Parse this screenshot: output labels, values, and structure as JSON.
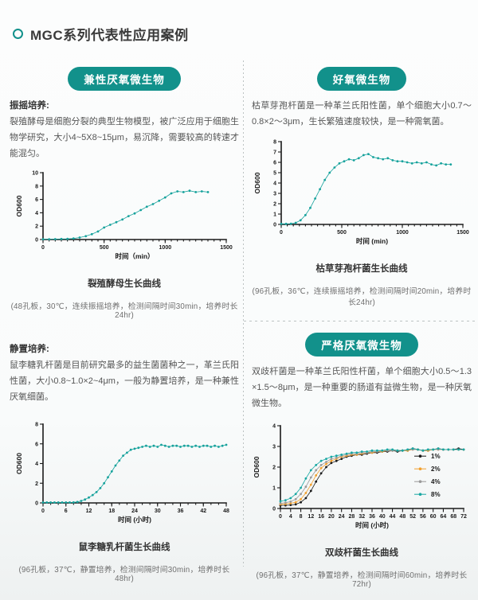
{
  "page": {
    "title": "MGC系列代表性应用案例"
  },
  "colors": {
    "accent_teal": "#12918b",
    "curve_teal": "#16a29c",
    "series_black": "#1a1a1a",
    "series_orange": "#f2a02e",
    "series_gray": "#9a9a9a",
    "series_teal": "#17a7a2"
  },
  "sections": {
    "facultative": {
      "badge": "兼性厌氧微生物",
      "method_label": "振摇培养:",
      "description": "裂殖酵母是细胞分裂的典型生物模型，被广泛应用于细胞生物学研究，大小4~5X8~15μm，易沉降，需要较高的转速才能混匀。",
      "caption": "裂殖酵母生长曲线",
      "note": "(48孔板，30℃，连续振摇培养，检测间隔时间30min，培养时长24hr)"
    },
    "aerobic": {
      "badge": "好氧微生物",
      "description": "枯草芽孢杆菌是一种革兰氏阳性菌，单个细胞大小0.7～0.8×2～3μm，生长繁殖速度较快，是一种需氧菌。",
      "caption": "枯草芽孢杆菌生长曲线",
      "note": "(96孔板，36℃，连续振摇培养，检测间隔时间20min，培养时长24hr)"
    },
    "static": {
      "method_label": "静置培养:",
      "description": "鼠李糖乳杆菌是目前研究最多的益生菌菌种之一，革兰氏阳性菌，大小0.8~1.0×2~4μm，一般为静置培养，是一种兼性厌氧细菌。",
      "caption": "鼠李糖乳杆菌生长曲线",
      "note": "(96孔板，37℃，静置培养，检测间隔时间30min，培养时长48hr)"
    },
    "anaerobic": {
      "badge": "严格厌氧微生物",
      "description": "双歧杆菌是一种革兰氏阳性杆菌，单个细胞大小0.5～1.3 ×1.5～8μm，是一种重要的肠道有益微生物，是一种厌氧微生物。",
      "caption": "双歧杆菌生长曲线",
      "note": "(96孔板，37℃，静置培养，检测间隔时间60min，培养时长72hr)"
    }
  },
  "chart_data": [
    {
      "type": "line",
      "title": "裂殖酵母生长曲线",
      "xlabel": "时间（min）",
      "ylabel": "OD600",
      "xlim": [
        0,
        1500
      ],
      "ylim": [
        0,
        10
      ],
      "xticks": [
        0,
        500,
        1000,
        1500
      ],
      "yticks": [
        0,
        2,
        4,
        6,
        8,
        10
      ],
      "x_minor": 50,
      "grid": false,
      "x": [
        0,
        50,
        100,
        150,
        200,
        250,
        300,
        350,
        400,
        450,
        500,
        550,
        600,
        650,
        700,
        750,
        800,
        850,
        900,
        950,
        1000,
        1050,
        1100,
        1150,
        1200,
        1250,
        1300,
        1350
      ],
      "series": [
        {
          "name": "OD600",
          "color": "#16a29c",
          "values": [
            0.05,
            0.05,
            0.06,
            0.08,
            0.1,
            0.15,
            0.3,
            0.5,
            0.8,
            1.2,
            1.8,
            2.2,
            2.6,
            3.0,
            3.5,
            3.9,
            4.4,
            4.9,
            5.3,
            5.8,
            6.3,
            6.9,
            7.2,
            7.1,
            7.3,
            7.1,
            7.2,
            7.1
          ]
        }
      ]
    },
    {
      "type": "line",
      "title": "枯草芽孢杆菌生长曲线",
      "xlabel": "时间 (min)",
      "ylabel": "OD600",
      "xlim": [
        0,
        1500
      ],
      "ylim": [
        0,
        8
      ],
      "xticks": [
        0,
        500,
        1000,
        1500
      ],
      "yticks": [
        0,
        1,
        2,
        3,
        4,
        5,
        6,
        7,
        8
      ],
      "x_minor": 50,
      "grid": false,
      "x": [
        0,
        40,
        80,
        120,
        160,
        200,
        240,
        280,
        320,
        360,
        400,
        440,
        480,
        520,
        560,
        600,
        640,
        680,
        720,
        760,
        800,
        840,
        880,
        920,
        960,
        1000,
        1040,
        1080,
        1120,
        1160,
        1200,
        1240,
        1280,
        1320,
        1360,
        1400
      ],
      "series": [
        {
          "name": "OD600",
          "color": "#16a29c",
          "values": [
            0.05,
            0.05,
            0.07,
            0.15,
            0.4,
            0.9,
            1.6,
            2.5,
            3.4,
            4.3,
            5.0,
            5.5,
            5.9,
            6.1,
            6.3,
            6.2,
            6.4,
            6.7,
            6.8,
            6.5,
            6.4,
            6.3,
            6.4,
            6.2,
            6.1,
            6.1,
            6.0,
            5.9,
            6.0,
            5.9,
            6.0,
            5.8,
            5.7,
            5.9,
            5.8,
            5.8
          ]
        }
      ]
    },
    {
      "type": "line",
      "title": "鼠李糖乳杆菌生长曲线",
      "xlabel": "时间 (小时)",
      "ylabel": "OD600",
      "xlim": [
        0,
        48
      ],
      "ylim": [
        0,
        8
      ],
      "xticks": [
        0,
        6,
        12,
        18,
        24,
        30,
        36,
        42,
        48
      ],
      "yticks": [
        0,
        2,
        4,
        6,
        8
      ],
      "x_minor": 2,
      "grid": false,
      "x": [
        0,
        1,
        2,
        3,
        4,
        5,
        6,
        7,
        8,
        9,
        10,
        11,
        12,
        13,
        14,
        15,
        16,
        17,
        18,
        19,
        20,
        21,
        22,
        23,
        24,
        25,
        26,
        27,
        28,
        29,
        30,
        31,
        32,
        33,
        34,
        35,
        36,
        37,
        38,
        39,
        40,
        41,
        42,
        43,
        44,
        45,
        46,
        47,
        48
      ],
      "series": [
        {
          "name": "OD600",
          "color": "#16a29c",
          "values": [
            0.05,
            0.05,
            0.05,
            0.05,
            0.05,
            0.05,
            0.05,
            0.05,
            0.06,
            0.1,
            0.2,
            0.35,
            0.55,
            0.8,
            1.1,
            1.5,
            2.0,
            2.6,
            3.2,
            3.8,
            4.3,
            4.8,
            5.1,
            5.4,
            5.5,
            5.6,
            5.7,
            5.8,
            5.7,
            5.8,
            5.7,
            5.9,
            5.8,
            5.7,
            5.8,
            5.8,
            5.7,
            5.8,
            5.8,
            5.7,
            5.8,
            5.7,
            5.8,
            5.8,
            5.7,
            5.8,
            5.7,
            5.8,
            5.9
          ]
        }
      ]
    },
    {
      "type": "line",
      "title": "双歧杆菌生长曲线",
      "xlabel": "时间 (小时)",
      "ylabel": "OD600",
      "xlim": [
        0,
        72
      ],
      "ylim": [
        0,
        4
      ],
      "xticks": [
        0,
        4,
        8,
        12,
        16,
        20,
        24,
        28,
        32,
        36,
        40,
        44,
        48,
        52,
        56,
        60,
        64,
        68,
        72
      ],
      "yticks": [
        0,
        1,
        2,
        3,
        4
      ],
      "grid": false,
      "legend": true,
      "legend_position": "right-inside",
      "x": [
        0,
        2,
        4,
        6,
        8,
        10,
        12,
        14,
        16,
        18,
        20,
        22,
        24,
        26,
        28,
        30,
        32,
        34,
        36,
        38,
        40,
        42,
        44,
        46,
        48,
        50,
        52,
        54,
        56,
        58,
        60,
        62,
        64,
        66,
        68,
        70,
        72
      ],
      "series": [
        {
          "name": "1%",
          "color": "#1a1a1a",
          "values": [
            0.15,
            0.15,
            0.17,
            0.2,
            0.3,
            0.5,
            0.85,
            1.3,
            1.7,
            2.0,
            2.2,
            2.3,
            2.4,
            2.5,
            2.55,
            2.6,
            2.6,
            2.65,
            2.7,
            2.7,
            2.75,
            2.75,
            2.8,
            2.75,
            2.8,
            2.8,
            2.9,
            2.85,
            2.8,
            2.8,
            2.85,
            2.9,
            2.85,
            2.85,
            2.85,
            2.9,
            2.85
          ]
        },
        {
          "name": "2%",
          "color": "#f2a02e",
          "values": [
            0.2,
            0.22,
            0.25,
            0.3,
            0.45,
            0.75,
            1.15,
            1.6,
            1.95,
            2.15,
            2.3,
            2.4,
            2.5,
            2.55,
            2.6,
            2.6,
            2.65,
            2.7,
            2.7,
            2.75,
            2.75,
            2.8,
            2.8,
            2.8,
            2.8,
            2.8,
            2.85,
            2.85,
            2.8,
            2.8,
            2.85,
            2.85,
            2.85,
            2.85,
            2.85,
            2.85,
            2.85
          ]
        },
        {
          "name": "4%",
          "color": "#9a9a9a",
          "values": [
            0.25,
            0.28,
            0.33,
            0.45,
            0.7,
            1.05,
            1.5,
            1.85,
            2.1,
            2.25,
            2.4,
            2.45,
            2.55,
            2.6,
            2.65,
            2.65,
            2.7,
            2.7,
            2.75,
            2.75,
            2.8,
            2.8,
            2.8,
            2.8,
            2.8,
            2.85,
            2.85,
            2.85,
            2.8,
            2.85,
            2.85,
            2.85,
            2.85,
            2.85,
            2.85,
            2.85,
            2.85
          ]
        },
        {
          "name": "8%",
          "color": "#17a7a2",
          "values": [
            0.35,
            0.4,
            0.5,
            0.7,
            1.0,
            1.45,
            1.85,
            2.1,
            2.3,
            2.4,
            2.5,
            2.55,
            2.6,
            2.65,
            2.7,
            2.7,
            2.75,
            2.75,
            2.8,
            2.8,
            2.8,
            2.85,
            2.85,
            2.8,
            2.8,
            2.85,
            2.9,
            2.85,
            2.8,
            2.85,
            2.85,
            2.9,
            2.85,
            2.85,
            2.85,
            2.85,
            2.85
          ]
        }
      ]
    }
  ]
}
